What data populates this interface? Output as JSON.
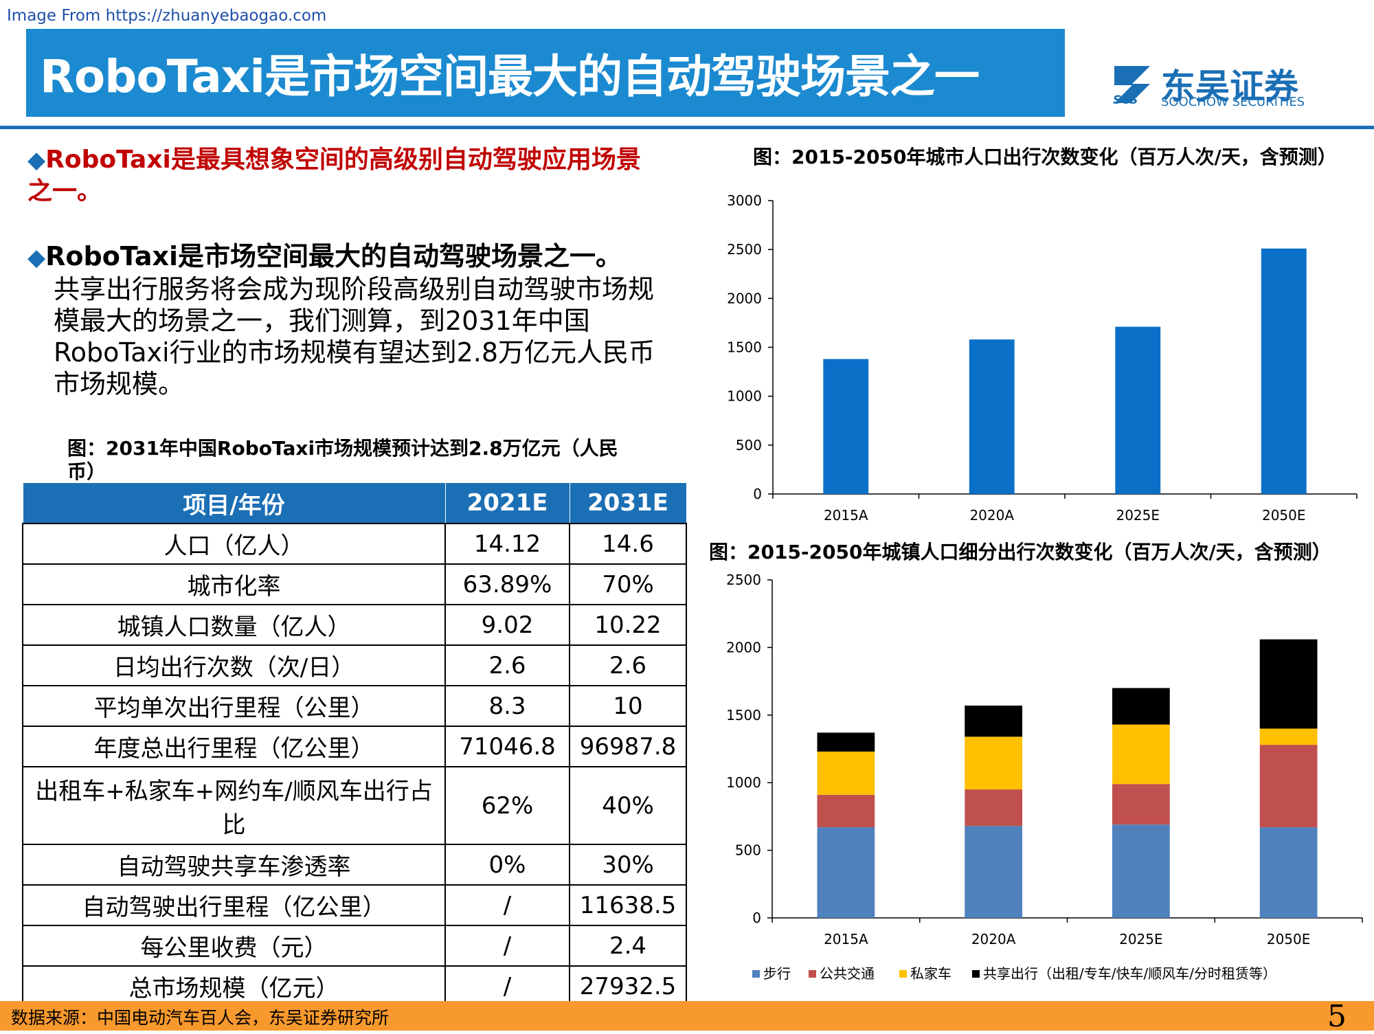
{
  "watermark": "Image From https://zhuanyebaogao.com",
  "title": "RoboTaxi是市场空间最大的自动驾驶场景之一",
  "logo": {
    "cn": "东吴证券",
    "en": "SOOCHOW SECURITIES",
    "abbr": "SCS"
  },
  "bullets": {
    "b1": "RoboTaxi是最具想象空间的高级别自动驾驶应用场景之一。",
    "b2_lead": "RoboTaxi是市场空间最大的自动驾驶场景之一。",
    "b2_body": "共享出行服务将会成为现阶段高级别自动驾驶市场规模最大的场景之一，我们测算，到2031年中国RoboTaxi行业的市场规模有望达到2.8万亿元人民币市场规模。"
  },
  "table": {
    "title": "图：2031年中国RoboTaxi市场规模预计达到2.8万亿元（人民币）",
    "headers": [
      "项目/年份",
      "2021E",
      "2031E"
    ],
    "rows": [
      [
        "人口（亿人）",
        "14.12",
        "14.6"
      ],
      [
        "城市化率",
        "63.89%",
        "70%"
      ],
      [
        "城镇人口数量（亿人）",
        "9.02",
        "10.22"
      ],
      [
        "日均出行次数（次/日）",
        "2.6",
        "2.6"
      ],
      [
        "平均单次出行里程（公里）",
        "8.3",
        "10"
      ],
      [
        "年度总出行里程（亿公里）",
        "71046.8",
        "96987.8"
      ],
      [
        "出租车+私家车+网约车/顺风车出行占比",
        "62%",
        "40%"
      ],
      [
        "自动驾驶共享车渗透率",
        "0%",
        "30%"
      ],
      [
        "自动驾驶出行里程（亿公里）",
        "/",
        "11638.5"
      ],
      [
        "每公里收费（元）",
        "/",
        "2.4"
      ],
      [
        "总市场规模（亿元）",
        "/",
        "27932.5"
      ]
    ]
  },
  "chart_data": [
    {
      "type": "bar",
      "title": "图：2015-2050年城市人口出行次数变化（百万人次/天，含预测）",
      "categories": [
        "2015A",
        "2020A",
        "2025E",
        "2050E"
      ],
      "values": [
        1380,
        1580,
        1710,
        2510
      ],
      "ylim": [
        0,
        3000
      ],
      "yticks": [
        "0",
        "500",
        "1000",
        "1500",
        "2000",
        "2500",
        "3000"
      ],
      "color": "#0a70c8",
      "grid": false
    },
    {
      "type": "bar",
      "stacked": true,
      "title": "图：2015-2050年城镇人口细分出行次数变化（百万人次/天，含预测）",
      "categories": [
        "2015A",
        "2020A",
        "2025E",
        "2050E"
      ],
      "series": [
        {
          "name": "步行",
          "color": "#4f81bd",
          "values": [
            670,
            680,
            690,
            670
          ]
        },
        {
          "name": "公共交通",
          "color": "#c0504d",
          "values": [
            240,
            270,
            300,
            610
          ]
        },
        {
          "name": "私家车",
          "color": "#ffc000",
          "values": [
            320,
            390,
            440,
            120
          ]
        },
        {
          "name": "共享出行（出租/专车/快车/顺风车/分时租赁等）",
          "color": "#000000",
          "values": [
            140,
            230,
            270,
            660
          ]
        }
      ],
      "ylim": [
        0,
        2500
      ],
      "yticks": [
        "0",
        "500",
        "1000",
        "1500",
        "2000",
        "2500"
      ],
      "legend": "bottom",
      "grid": false
    }
  ],
  "footer": {
    "source": "数据来源：中国电动汽车百人会，东吴证券研究所",
    "page": "5"
  }
}
